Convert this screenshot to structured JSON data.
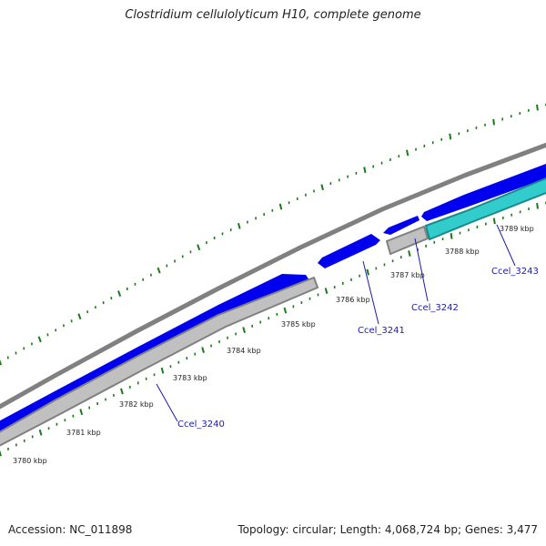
{
  "title": "Clostridium cellulolyticum H10, complete genome",
  "footer": {
    "accession": "Accession: NC_011898",
    "summary": "Topology: circular; Length: 4,068,724 bp; Genes: 3,477"
  },
  "colors": {
    "backbone": "#808080",
    "forward_gene": "#0000ee",
    "reverse_gene": "#c0c0c0",
    "cyan_gene": "#33cccc",
    "tick": "#1a7a1a",
    "gene_label": "#1a1aa8"
  },
  "ticks": [
    {
      "label": "3780 kbp"
    },
    {
      "label": "3781 kbp"
    },
    {
      "label": "3782 kbp"
    },
    {
      "label": "3783 kbp"
    },
    {
      "label": "3784 kbp"
    },
    {
      "label": "3785 kbp"
    },
    {
      "label": "3786 kbp"
    },
    {
      "label": "3787 kbp"
    },
    {
      "label": "3788 kbp"
    },
    {
      "label": "3789 kbp"
    }
  ],
  "genes": [
    {
      "name": "Ccel_3240"
    },
    {
      "name": "Ccel_3241"
    },
    {
      "name": "Ccel_3242"
    },
    {
      "name": "Ccel_3243"
    }
  ]
}
